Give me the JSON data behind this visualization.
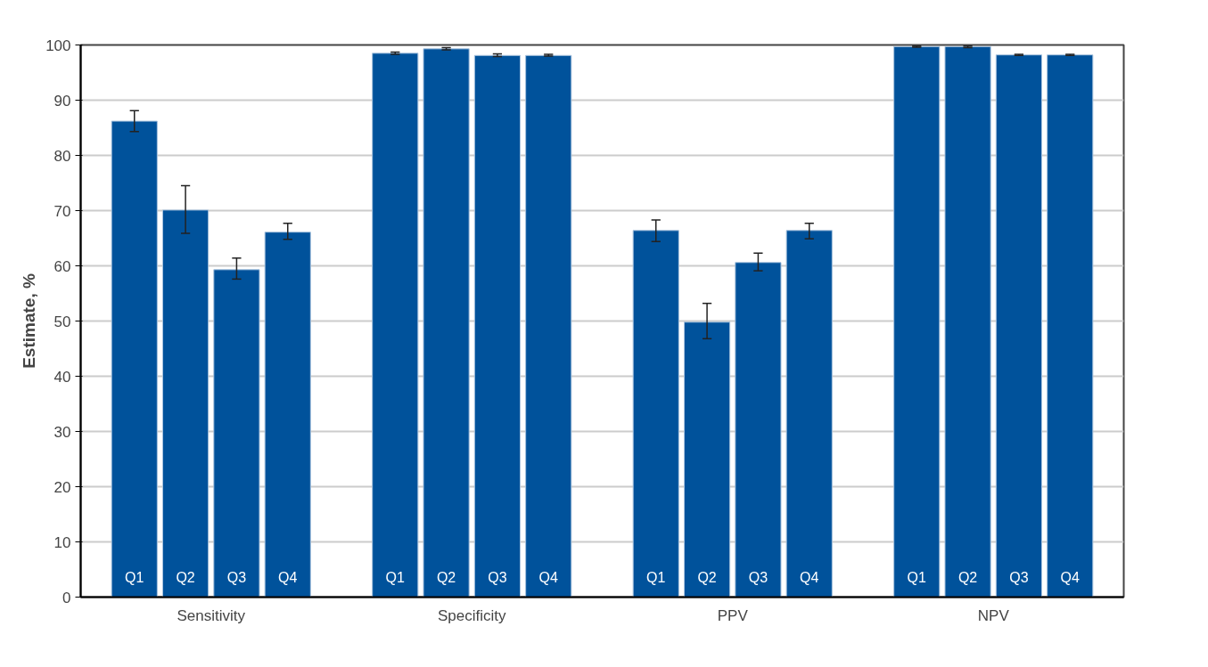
{
  "chart_data": {
    "type": "bar",
    "ylabel": "Estimate, %",
    "categories": [
      "Sensitivity",
      "Specificity",
      "PPV",
      "NPV"
    ],
    "series": [
      {
        "name": "Q1",
        "color": "#00529b",
        "values": [
          86.2,
          98.5,
          66.4,
          99.7
        ],
        "errors": [
          [
            84.3,
            88.1
          ],
          [
            98.3,
            98.7
          ],
          [
            64.4,
            68.3
          ],
          [
            99.6,
            99.8
          ]
        ]
      },
      {
        "name": "Q2",
        "color": "#00529b",
        "values": [
          70.1,
          99.3,
          49.8,
          99.7
        ],
        "errors": [
          [
            65.9,
            74.5
          ],
          [
            99.1,
            99.5
          ],
          [
            46.8,
            53.2
          ],
          [
            99.5,
            99.8
          ]
        ]
      },
      {
        "name": "Q3",
        "color": "#00529b",
        "values": [
          59.3,
          98.1,
          60.6,
          98.2
        ],
        "errors": [
          [
            57.6,
            61.4
          ],
          [
            97.9,
            98.4
          ],
          [
            59.1,
            62.3
          ],
          [
            98.1,
            98.3
          ]
        ]
      },
      {
        "name": "Q4",
        "color": "#00529b",
        "values": [
          66.1,
          98.1,
          66.4,
          98.2
        ],
        "errors": [
          [
            64.8,
            67.7
          ],
          [
            98.0,
            98.3
          ],
          [
            64.9,
            67.7
          ],
          [
            98.1,
            98.3
          ]
        ]
      }
    ],
    "ylim": [
      0,
      100
    ],
    "yticks": [
      0,
      10,
      20,
      30,
      40,
      50,
      60,
      70,
      80,
      90,
      100
    ],
    "grid": "y"
  }
}
